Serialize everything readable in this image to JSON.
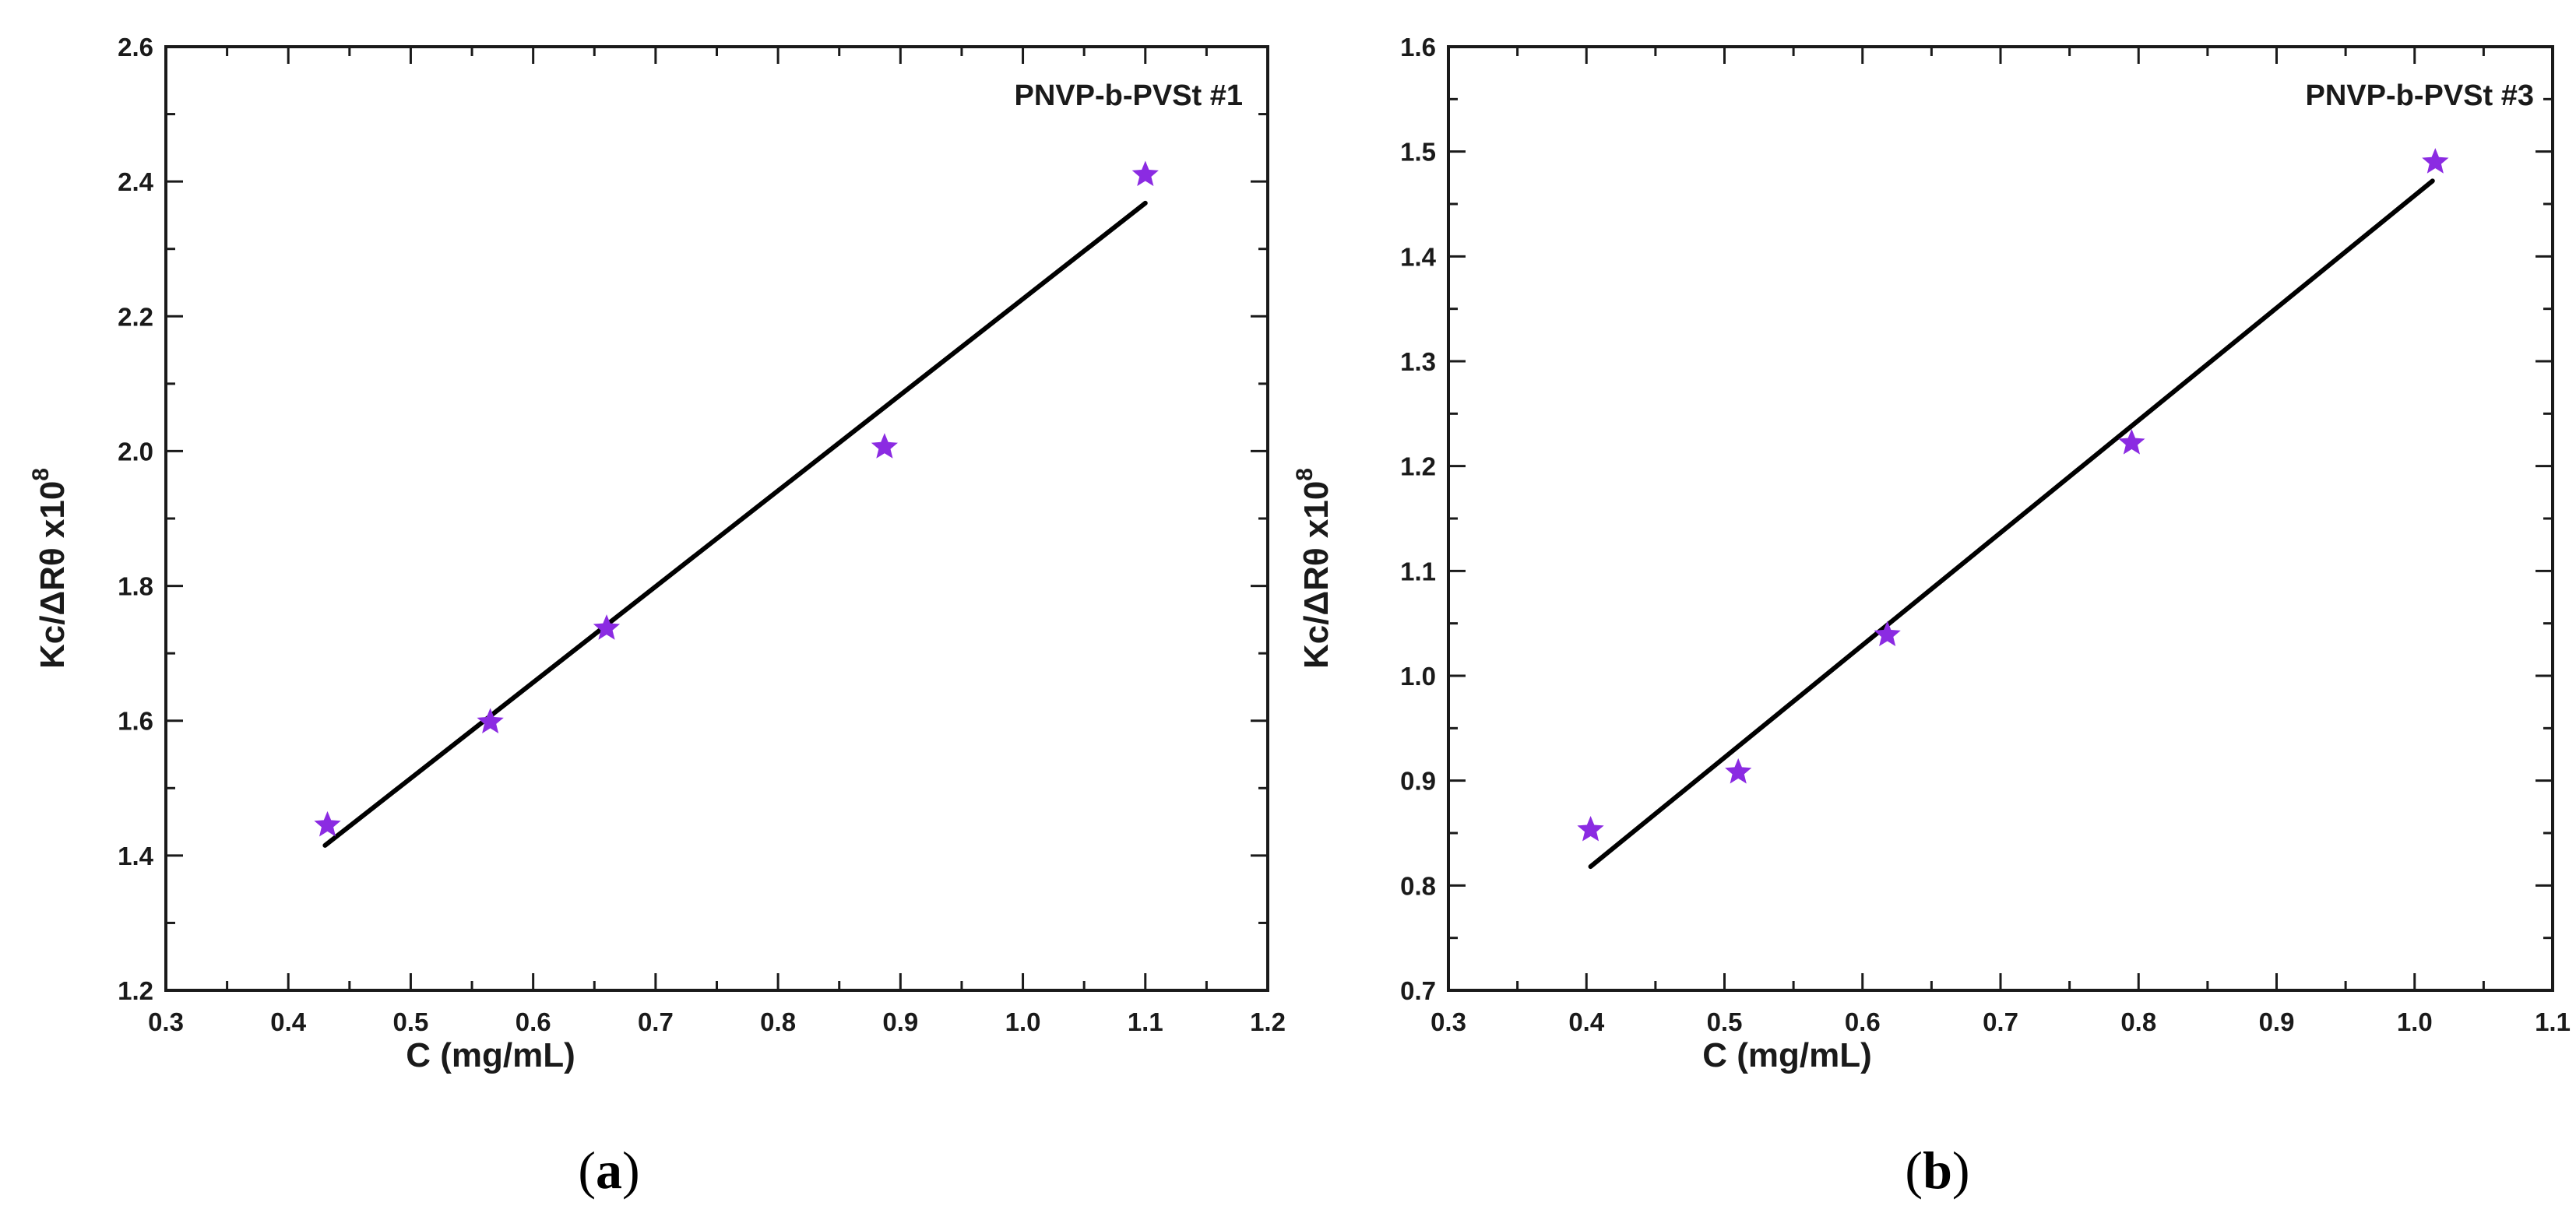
{
  "colors": {
    "marker": "#8B2BE2",
    "fit_line": "#000000",
    "axes": "#1a1a1a"
  },
  "chart_data": [
    {
      "type": "scatter",
      "panel_label": "a",
      "annotation": "PNVP-b-PVSt #1",
      "xlabel": "C (mg/mL)",
      "ylabel_main": "Kc/ΔRθ x10",
      "ylabel_exp": "8",
      "xlim": [
        0.3,
        1.2
      ],
      "ylim": [
        1.2,
        2.6
      ],
      "xticks": [
        0.3,
        0.4,
        0.5,
        0.6,
        0.7,
        0.8,
        0.9,
        1.0,
        1.1,
        1.2
      ],
      "yticks": [
        1.2,
        1.4,
        1.6,
        1.8,
        2.0,
        2.2,
        2.4,
        2.6
      ],
      "xtick_labels": [
        "0.3",
        "0.4",
        "0.5",
        "0.6",
        "0.7",
        "0.8",
        "0.9",
        "1.0",
        "1.1",
        "1.2"
      ],
      "ytick_labels": [
        "1.2",
        "1.4",
        "1.6",
        "1.8",
        "2.0",
        "2.2",
        "2.4",
        "2.6"
      ],
      "points": [
        {
          "x": 0.432,
          "y": 1.445
        },
        {
          "x": 0.565,
          "y": 1.598
        },
        {
          "x": 0.66,
          "y": 1.737
        },
        {
          "x": 0.887,
          "y": 2.006
        },
        {
          "x": 1.1,
          "y": 2.41
        }
      ],
      "fit_line": {
        "x": [
          0.43,
          1.1
        ],
        "y": [
          1.415,
          2.368
        ]
      }
    },
    {
      "type": "scatter",
      "panel_label": "b",
      "annotation": "PNVP-b-PVSt #3",
      "xlabel": "C (mg/mL)",
      "ylabel_main": "Kc/ΔRθ x10",
      "ylabel_exp": "8",
      "xlim": [
        0.3,
        1.1
      ],
      "ylim": [
        0.7,
        1.6
      ],
      "xticks": [
        0.3,
        0.4,
        0.5,
        0.6,
        0.7,
        0.8,
        0.9,
        1.0,
        1.1
      ],
      "yticks": [
        0.7,
        0.8,
        0.9,
        1.0,
        1.1,
        1.2,
        1.3,
        1.4,
        1.5,
        1.6
      ],
      "xtick_labels": [
        "0.3",
        "0.4",
        "0.5",
        "0.6",
        "0.7",
        "0.8",
        "0.9",
        "1.0",
        "1.1"
      ],
      "ytick_labels": [
        "0.7",
        "0.8",
        "0.9",
        "1.0",
        "1.1",
        "1.2",
        "1.3",
        "1.4",
        "1.5",
        "1.6"
      ],
      "points": [
        {
          "x": 0.403,
          "y": 0.853
        },
        {
          "x": 0.51,
          "y": 0.908
        },
        {
          "x": 0.618,
          "y": 1.039
        },
        {
          "x": 0.795,
          "y": 1.222
        },
        {
          "x": 1.015,
          "y": 1.49
        }
      ],
      "fit_line": {
        "x": [
          0.403,
          1.013
        ],
        "y": [
          0.818,
          1.472
        ]
      }
    }
  ]
}
